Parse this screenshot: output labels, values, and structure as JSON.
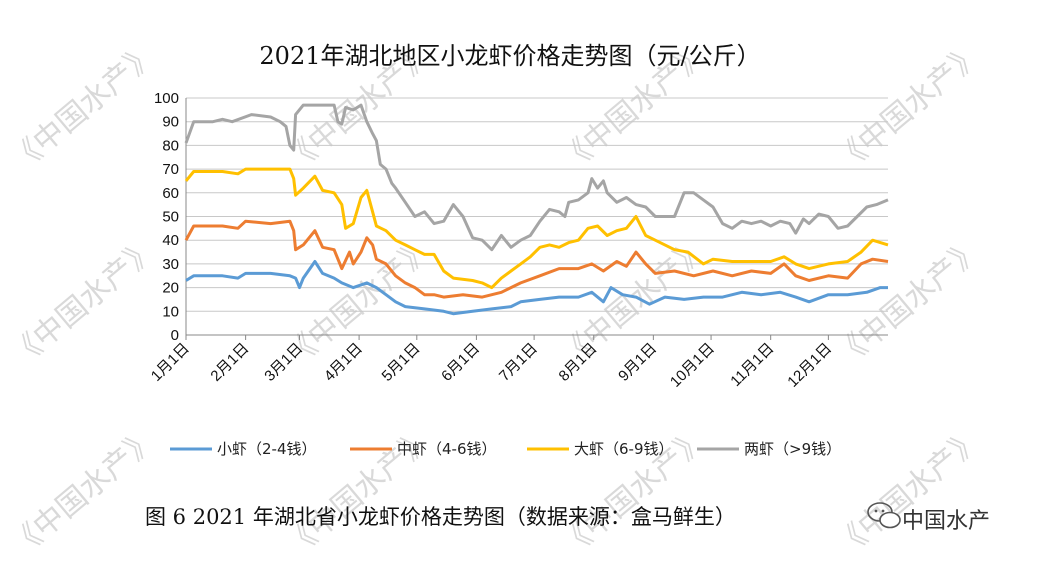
{
  "title": "2021年湖北地区小龙虾价格走势图（元/公斤）",
  "caption": "图 6 2021 年湖北省小龙虾价格走势图（数据来源：盒马鲜生）",
  "watermark": {
    "text": "《中国水产》",
    "brand": "中国水产",
    "brand_icon": "wechat-icon"
  },
  "chart_data": {
    "type": "line",
    "title": "2021年湖北地区小龙虾价格走势图（元/公斤）",
    "xlabel": "",
    "ylabel": "",
    "ylim": [
      0,
      100
    ],
    "y_ticks": [
      "0",
      "10",
      "20",
      "30",
      "40",
      "50",
      "60",
      "70",
      "80",
      "90",
      "100"
    ],
    "x_ticks": [
      "1月1日",
      "2月1日",
      "3月1日",
      "4月1日",
      "5月1日",
      "6月1日",
      "7月1日",
      "8月1日",
      "9月1日",
      "10月1日",
      "11月1日",
      "12月1日"
    ],
    "x_domain_days": [
      1,
      366
    ],
    "grid": true,
    "legend_position": "bottom",
    "series": [
      {
        "name": "小虾（2-4钱）",
        "color": "#5b9bd5",
        "points": [
          [
            1,
            23
          ],
          [
            5,
            25
          ],
          [
            20,
            25
          ],
          [
            28,
            24
          ],
          [
            32,
            26
          ],
          [
            45,
            26
          ],
          [
            55,
            25
          ],
          [
            58,
            24
          ],
          [
            60,
            20
          ],
          [
            62,
            24
          ],
          [
            68,
            31
          ],
          [
            72,
            26
          ],
          [
            78,
            24
          ],
          [
            82,
            22
          ],
          [
            88,
            20
          ],
          [
            95,
            22
          ],
          [
            100,
            20
          ],
          [
            105,
            17
          ],
          [
            110,
            14
          ],
          [
            115,
            12
          ],
          [
            125,
            11
          ],
          [
            135,
            10
          ],
          [
            140,
            9
          ],
          [
            150,
            10
          ],
          [
            160,
            11
          ],
          [
            170,
            12
          ],
          [
            175,
            14
          ],
          [
            185,
            15
          ],
          [
            195,
            16
          ],
          [
            205,
            16
          ],
          [
            212,
            18
          ],
          [
            218,
            14
          ],
          [
            222,
            20
          ],
          [
            228,
            17
          ],
          [
            235,
            16
          ],
          [
            242,
            13
          ],
          [
            250,
            16
          ],
          [
            260,
            15
          ],
          [
            270,
            16
          ],
          [
            280,
            16
          ],
          [
            290,
            18
          ],
          [
            300,
            17
          ],
          [
            310,
            18
          ],
          [
            318,
            16
          ],
          [
            325,
            14
          ],
          [
            335,
            17
          ],
          [
            345,
            17
          ],
          [
            355,
            18
          ],
          [
            362,
            20
          ],
          [
            366,
            20
          ]
        ]
      },
      {
        "name": "中虾（4-6钱）",
        "color": "#ed7d31",
        "points": [
          [
            1,
            40
          ],
          [
            5,
            46
          ],
          [
            20,
            46
          ],
          [
            28,
            45
          ],
          [
            32,
            48
          ],
          [
            45,
            47
          ],
          [
            55,
            48
          ],
          [
            57,
            44
          ],
          [
            58,
            36
          ],
          [
            62,
            38
          ],
          [
            68,
            44
          ],
          [
            72,
            37
          ],
          [
            78,
            36
          ],
          [
            82,
            28
          ],
          [
            86,
            35
          ],
          [
            88,
            30
          ],
          [
            92,
            35
          ],
          [
            95,
            41
          ],
          [
            98,
            38
          ],
          [
            100,
            32
          ],
          [
            105,
            30
          ],
          [
            110,
            25
          ],
          [
            115,
            22
          ],
          [
            120,
            20
          ],
          [
            125,
            17
          ],
          [
            130,
            17
          ],
          [
            135,
            16
          ],
          [
            145,
            17
          ],
          [
            155,
            16
          ],
          [
            165,
            18
          ],
          [
            175,
            22
          ],
          [
            185,
            25
          ],
          [
            195,
            28
          ],
          [
            205,
            28
          ],
          [
            212,
            30
          ],
          [
            218,
            27
          ],
          [
            225,
            31
          ],
          [
            230,
            29
          ],
          [
            235,
            35
          ],
          [
            240,
            30
          ],
          [
            245,
            26
          ],
          [
            255,
            27
          ],
          [
            265,
            25
          ],
          [
            275,
            27
          ],
          [
            285,
            25
          ],
          [
            295,
            27
          ],
          [
            305,
            26
          ],
          [
            312,
            30
          ],
          [
            318,
            25
          ],
          [
            325,
            23
          ],
          [
            335,
            25
          ],
          [
            345,
            24
          ],
          [
            352,
            30
          ],
          [
            358,
            32
          ],
          [
            366,
            31
          ]
        ]
      },
      {
        "name": "大虾（6-9钱）",
        "color": "#ffc000",
        "points": [
          [
            1,
            65
          ],
          [
            5,
            69
          ],
          [
            20,
            69
          ],
          [
            28,
            68
          ],
          [
            32,
            70
          ],
          [
            45,
            70
          ],
          [
            55,
            70
          ],
          [
            57,
            66
          ],
          [
            58,
            59
          ],
          [
            62,
            62
          ],
          [
            68,
            67
          ],
          [
            72,
            61
          ],
          [
            78,
            60
          ],
          [
            82,
            55
          ],
          [
            84,
            45
          ],
          [
            88,
            47
          ],
          [
            92,
            58
          ],
          [
            95,
            61
          ],
          [
            98,
            52
          ],
          [
            100,
            46
          ],
          [
            105,
            44
          ],
          [
            110,
            40
          ],
          [
            115,
            38
          ],
          [
            120,
            36
          ],
          [
            125,
            34
          ],
          [
            130,
            34
          ],
          [
            135,
            27
          ],
          [
            140,
            24
          ],
          [
            150,
            23
          ],
          [
            155,
            22
          ],
          [
            160,
            20
          ],
          [
            165,
            24
          ],
          [
            170,
            27
          ],
          [
            175,
            30
          ],
          [
            180,
            33
          ],
          [
            185,
            37
          ],
          [
            190,
            38
          ],
          [
            195,
            37
          ],
          [
            200,
            39
          ],
          [
            205,
            40
          ],
          [
            210,
            45
          ],
          [
            215,
            46
          ],
          [
            220,
            42
          ],
          [
            225,
            44
          ],
          [
            230,
            45
          ],
          [
            235,
            50
          ],
          [
            240,
            42
          ],
          [
            245,
            40
          ],
          [
            255,
            36
          ],
          [
            262,
            35
          ],
          [
            270,
            30
          ],
          [
            275,
            32
          ],
          [
            285,
            31
          ],
          [
            295,
            31
          ],
          [
            305,
            31
          ],
          [
            312,
            33
          ],
          [
            318,
            30
          ],
          [
            325,
            28
          ],
          [
            335,
            30
          ],
          [
            345,
            31
          ],
          [
            352,
            35
          ],
          [
            358,
            40
          ],
          [
            366,
            38
          ]
        ]
      },
      {
        "name": "两虾（>9钱）",
        "color": "#a5a5a5",
        "points": [
          [
            1,
            81
          ],
          [
            5,
            90
          ],
          [
            15,
            90
          ],
          [
            20,
            91
          ],
          [
            25,
            90
          ],
          [
            35,
            93
          ],
          [
            45,
            92
          ],
          [
            50,
            90
          ],
          [
            53,
            88
          ],
          [
            55,
            80
          ],
          [
            57,
            78
          ],
          [
            58,
            93
          ],
          [
            62,
            97
          ],
          [
            65,
            97
          ],
          [
            70,
            97
          ],
          [
            75,
            97
          ],
          [
            78,
            97
          ],
          [
            80,
            90
          ],
          [
            82,
            89
          ],
          [
            84,
            96
          ],
          [
            88,
            95
          ],
          [
            92,
            97
          ],
          [
            95,
            90
          ],
          [
            98,
            85
          ],
          [
            100,
            82
          ],
          [
            102,
            72
          ],
          [
            105,
            70
          ],
          [
            108,
            64
          ],
          [
            110,
            62
          ],
          [
            115,
            56
          ],
          [
            120,
            50
          ],
          [
            125,
            52
          ],
          [
            130,
            47
          ],
          [
            135,
            48
          ],
          [
            140,
            55
          ],
          [
            145,
            50
          ],
          [
            150,
            41
          ],
          [
            155,
            40
          ],
          [
            160,
            36
          ],
          [
            165,
            42
          ],
          [
            170,
            37
          ],
          [
            175,
            40
          ],
          [
            180,
            42
          ],
          [
            185,
            48
          ],
          [
            190,
            53
          ],
          [
            195,
            52
          ],
          [
            198,
            50
          ],
          [
            200,
            56
          ],
          [
            205,
            57
          ],
          [
            210,
            60
          ],
          [
            212,
            66
          ],
          [
            215,
            62
          ],
          [
            218,
            65
          ],
          [
            220,
            60
          ],
          [
            225,
            56
          ],
          [
            230,
            58
          ],
          [
            235,
            55
          ],
          [
            240,
            54
          ],
          [
            245,
            50
          ],
          [
            250,
            50
          ],
          [
            255,
            50
          ],
          [
            260,
            60
          ],
          [
            265,
            60
          ],
          [
            270,
            57
          ],
          [
            275,
            54
          ],
          [
            280,
            47
          ],
          [
            285,
            45
          ],
          [
            290,
            48
          ],
          [
            295,
            47
          ],
          [
            300,
            48
          ],
          [
            305,
            46
          ],
          [
            310,
            48
          ],
          [
            315,
            47
          ],
          [
            318,
            43
          ],
          [
            322,
            49
          ],
          [
            325,
            47
          ],
          [
            330,
            51
          ],
          [
            335,
            50
          ],
          [
            340,
            45
          ],
          [
            345,
            46
          ],
          [
            350,
            50
          ],
          [
            355,
            54
          ],
          [
            360,
            55
          ],
          [
            366,
            57
          ]
        ]
      }
    ]
  }
}
